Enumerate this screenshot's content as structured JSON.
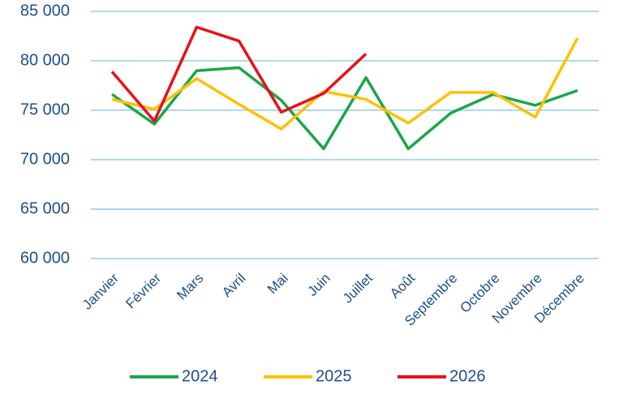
{
  "chart_data": {
    "type": "line",
    "categories": [
      "Janvier",
      "Février",
      "Mars",
      "Avril",
      "Mai",
      "Juin",
      "Juillet",
      "Août",
      "Septembre",
      "Octobre",
      "Novembre",
      "Décembre"
    ],
    "series": [
      {
        "name": "2024",
        "color": "#1aa64a",
        "values": [
          76600,
          73600,
          79000,
          79300,
          76000,
          71100,
          78300,
          71100,
          74700,
          76600,
          75500,
          77000
        ]
      },
      {
        "name": "2025",
        "color": "#ffc000",
        "values": [
          76100,
          75100,
          78200,
          75600,
          73100,
          76900,
          76100,
          73700,
          76800,
          76800,
          74300,
          82300
        ]
      },
      {
        "name": "2026",
        "color": "#e8101a",
        "values": [
          78900,
          73900,
          83400,
          82000,
          74800,
          76700,
          80700,
          null,
          null,
          null,
          null,
          null
        ]
      }
    ],
    "ylim": [
      60000,
      85000
    ],
    "yticks": [
      {
        "value": 60000,
        "label": "60 000"
      },
      {
        "value": 65000,
        "label": "65 000"
      },
      {
        "value": 70000,
        "label": "70 000"
      },
      {
        "value": 75000,
        "label": "75 000"
      },
      {
        "value": 80000,
        "label": "80 000"
      },
      {
        "value": 85000,
        "label": "85 000"
      }
    ],
    "grid": true,
    "legend": "bottom"
  }
}
